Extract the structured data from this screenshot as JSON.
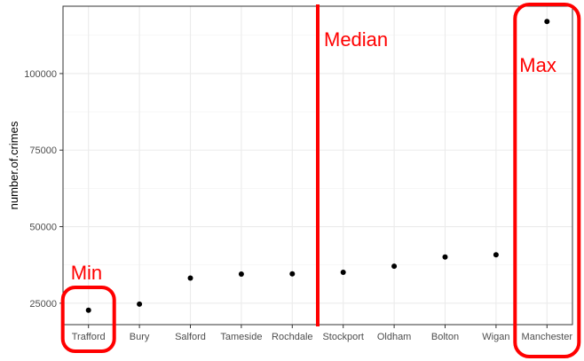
{
  "chart_data": {
    "type": "scatter",
    "title": "",
    "xlabel": "",
    "ylabel": "number.of.crimes",
    "categories": [
      "Trafford",
      "Bury",
      "Salford",
      "Tameside",
      "Rochdale",
      "Stockport",
      "Oldham",
      "Bolton",
      "Wigan",
      "Manchester"
    ],
    "values": [
      22700,
      24700,
      33200,
      34500,
      34600,
      35100,
      37100,
      40100,
      40800,
      117000
    ],
    "ylim": [
      18000,
      122000
    ],
    "yticks": [
      25000,
      50000,
      75000,
      100000
    ],
    "ytick_labels": [
      "25000",
      "50000",
      "75000",
      "100000"
    ],
    "grid": true,
    "theme": "bw",
    "annotations": [
      {
        "label": "Min",
        "category": "Trafford",
        "color": "#ff0000"
      },
      {
        "label": "Median",
        "between": [
          "Rochdale",
          "Stockport"
        ],
        "color": "#ff0000"
      },
      {
        "label": "Max",
        "category": "Manchester",
        "color": "#ff0000"
      }
    ]
  }
}
